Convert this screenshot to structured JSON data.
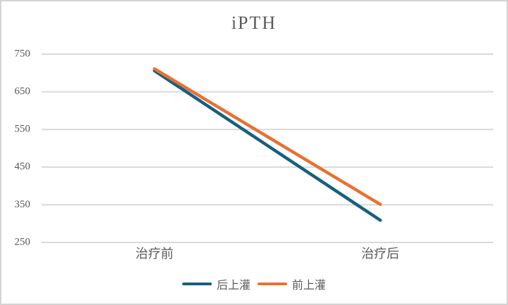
{
  "title": "iPTH",
  "colors": {
    "series_blue": "#156082",
    "series_orange": "#E97132",
    "gridline": "#D9D9D9",
    "text": "#595959",
    "border": "#D3D3D3",
    "background": "#FFFFFF"
  },
  "legend": {
    "items": [
      {
        "label": "后上灌",
        "color": "#156082"
      },
      {
        "label": "前上灌",
        "color": "#E97132"
      }
    ]
  },
  "chart_data": {
    "type": "line",
    "title": "iPTH",
    "categories": [
      "治疗前",
      "治疗后"
    ],
    "series": [
      {
        "name": "后上灌",
        "color": "#156082",
        "values": [
          706,
          309
        ]
      },
      {
        "name": "前上灌",
        "color": "#E97132",
        "values": [
          711,
          351
        ]
      }
    ],
    "ylim": [
      250,
      750
    ],
    "yticks": [
      250,
      350,
      450,
      550,
      650,
      750
    ],
    "xlabel": "",
    "ylabel": "",
    "grid": "horizontal",
    "legend_position": "bottom"
  }
}
